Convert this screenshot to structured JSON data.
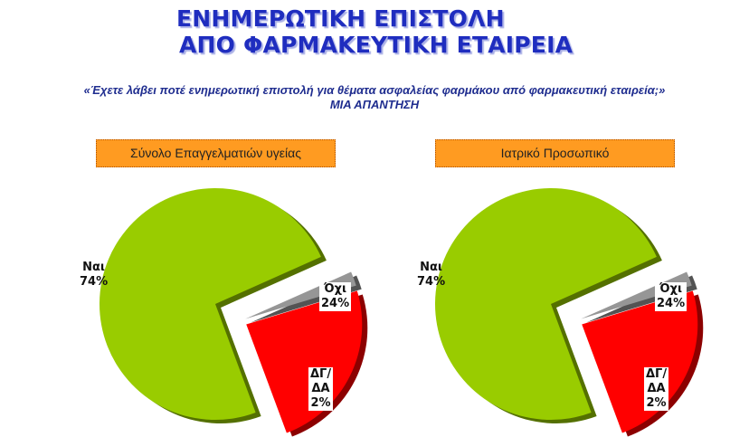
{
  "header": {
    "title_line1": "ΕΝΗΜΕΡΩΤΙΚΗ ΕΠΙΣΤΟΛΗ",
    "title_line2": "ΑΠΟ ΦΑΡΜΑΚΕΥΤΙΚΗ ΕΤΑΙΡΕΙΑ",
    "question": "«Έχετε λάβει ποτέ ενημερωτική επιστολή για θέματα ασφαλείας φαρμάκου από φαρμακευτική εταιρεία;»",
    "note": "ΜΙΑ ΑΠΑΝΤΗΣΗ"
  },
  "colors": {
    "title": "#1f2dbf",
    "yes": "#99cc00",
    "no": "#ff0000",
    "dk": "#969696",
    "box": "#ff9b21"
  },
  "chart_data": [
    {
      "type": "pie",
      "title": "Σύνολο Επαγγελματιών υγείας",
      "slices": [
        {
          "label": "Ναι",
          "value": 74,
          "display": "74%",
          "color": "#99cc00"
        },
        {
          "label": "Όχι",
          "value": 24,
          "display": "24%",
          "color": "#ff0000"
        },
        {
          "label": "ΔΓ/ΔΑ",
          "value": 2,
          "display": "2%",
          "color": "#969696"
        }
      ]
    },
    {
      "type": "pie",
      "title": "Ιατρικό Προσωπικό",
      "slices": [
        {
          "label": "Ναι",
          "value": 74,
          "display": "74%",
          "color": "#99cc00"
        },
        {
          "label": "Όχι",
          "value": 24,
          "display": "24%",
          "color": "#ff0000"
        },
        {
          "label": "ΔΓ/ΔΑ",
          "value": 2,
          "display": "2%",
          "color": "#969696"
        }
      ]
    }
  ]
}
